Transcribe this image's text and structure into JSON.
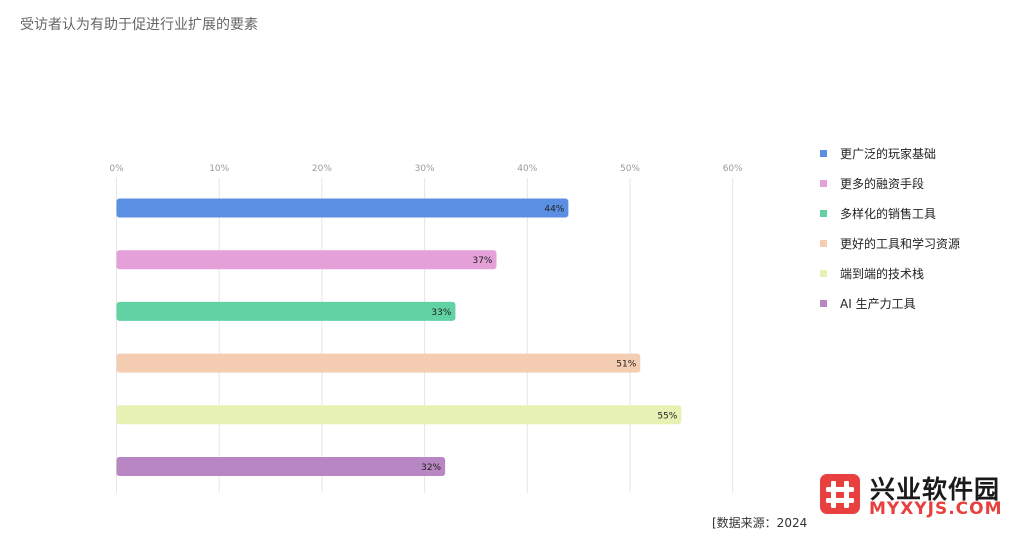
{
  "chart_data": {
    "type": "bar",
    "orientation": "horizontal",
    "title": "受访者认为有助于促进行业扩展的要素",
    "categories": [
      "更广泛的玩家基础",
      "更多的融资手段",
      "多样化的销售工具",
      "更好的工具和学习资源",
      "端到端的技术栈",
      "AI 生产力工具"
    ],
    "values": [
      44,
      37,
      33,
      51,
      55,
      32
    ],
    "value_labels": [
      "44%",
      "37%",
      "33%",
      "51%",
      "55%",
      "32%"
    ],
    "colors": [
      "#5b8fe3",
      "#e3a0d9",
      "#62d2a2",
      "#f4cdb3",
      "#e7f1b4",
      "#b886c3"
    ],
    "xlim": [
      0,
      60
    ],
    "x_ticks": [
      "0%",
      "10%",
      "20%",
      "30%",
      "40%",
      "50%",
      "60%"
    ],
    "grid": true,
    "legend_position": "right"
  },
  "source": "[数据来源：2024",
  "watermark": {
    "name": "兴业软件园",
    "url": "MYXYJS.COM",
    "accent_color": "#e8403f"
  }
}
